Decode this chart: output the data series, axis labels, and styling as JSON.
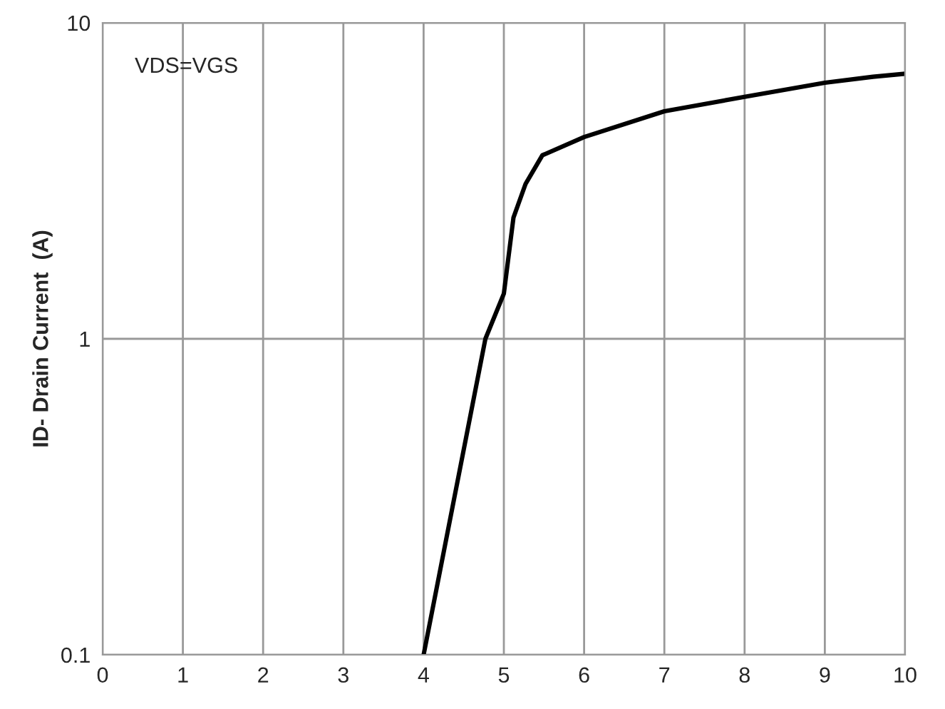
{
  "chart_data": {
    "type": "line",
    "ylabel": "ID- Drain Current  (A)",
    "annotations": [
      "VDS=VGS"
    ],
    "x": [
      4,
      4.77,
      5,
      5.12,
      5.27,
      5.48,
      6,
      7,
      8,
      9,
      9.6,
      10
    ],
    "series": [
      {
        "color": "#000000",
        "values": [
          0.1,
          1.0,
          1.39,
          2.42,
          3.09,
          3.81,
          4.35,
          5.25,
          5.83,
          6.46,
          6.75,
          6.9
        ]
      }
    ],
    "log": "y",
    "xlim": [
      0,
      10
    ],
    "xticks": [
      0,
      1,
      2,
      3,
      4,
      5,
      6,
      7,
      8,
      9,
      10
    ],
    "ylim": [
      0.1,
      10
    ],
    "yticks": [
      0.1,
      1,
      10
    ],
    "grid": true,
    "line_style": "solid"
  }
}
